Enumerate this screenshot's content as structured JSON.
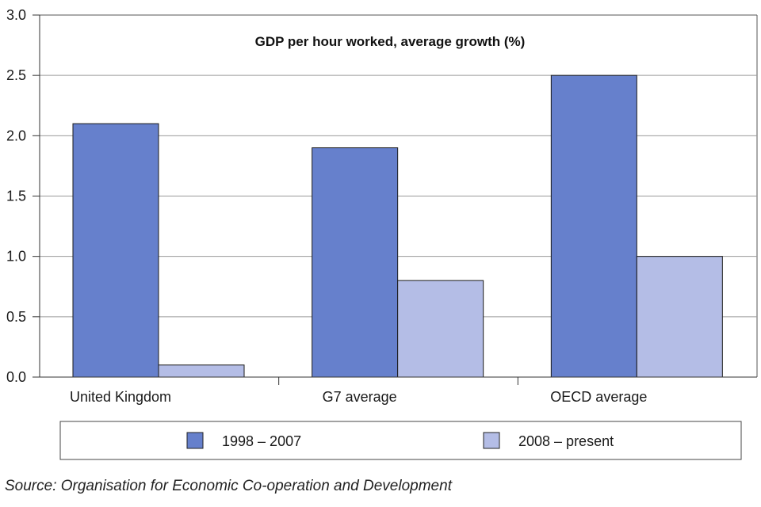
{
  "chart_data": {
    "type": "bar",
    "title": "GDP per hour worked, average growth (%)",
    "categories": [
      "United Kingdom",
      "G7 average",
      "OECD average"
    ],
    "series": [
      {
        "name": "1998 – 2007",
        "color": "#6680cc",
        "values": [
          2.1,
          1.9,
          2.5
        ]
      },
      {
        "name": "2008 – present",
        "color": "#b4bde6",
        "values": [
          0.1,
          0.8,
          1.0
        ]
      }
    ],
    "ylim": [
      0,
      3.0
    ],
    "yticks": [
      "0.0",
      "0.5",
      "1.0",
      "1.5",
      "2.0",
      "2.5",
      "3.0"
    ],
    "xlabel": "",
    "ylabel": "",
    "grid": true,
    "legend_position": "bottom"
  },
  "source": "Source: Organisation for Economic Co-operation and Development"
}
